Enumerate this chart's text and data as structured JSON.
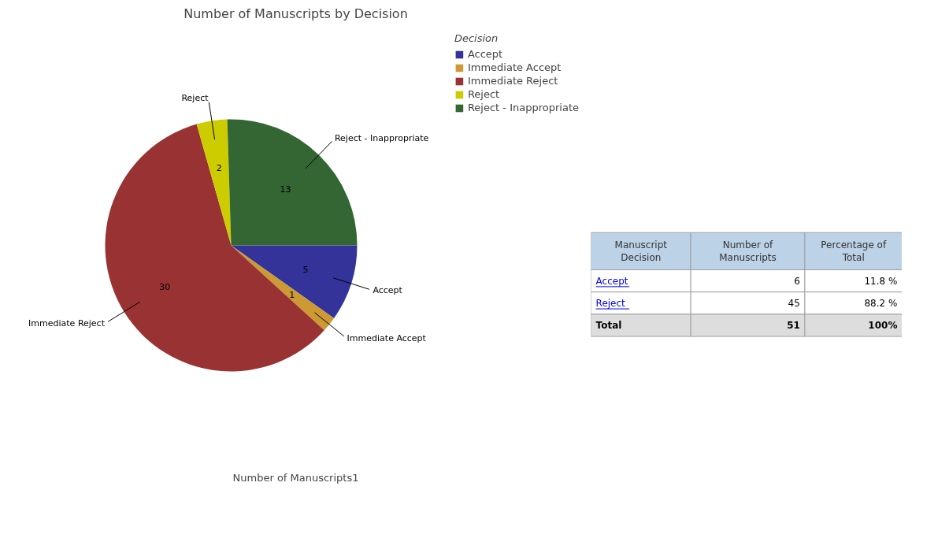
{
  "chart_data": [
    {
      "type": "pie",
      "title": "Number of Manuscripts by Decision",
      "xlabel": "Number of Manuscripts1",
      "legend_title": "Decision",
      "legend": "top right",
      "data_labels": true,
      "categories": [
        "Accept",
        "Immediate Accept",
        "Immediate Reject",
        "Reject",
        "Reject - Inappropriate"
      ],
      "values": [
        5,
        1,
        30,
        2,
        13
      ],
      "colors": [
        "#333399",
        "#cc9933",
        "#993333",
        "#cccc00",
        "#336633"
      ]
    },
    {
      "type": "other",
      "xlabel": "Manuscript Decision",
      "categories": [
        "Accept",
        "Reject",
        "Total"
      ],
      "series": [
        {
          "name": "Number of Manuscripts",
          "colors": [
            "#ffffff",
            "#ffffff",
            "#dddddd"
          ],
          "values": [
            6,
            45,
            51
          ],
          "value_labels": [
            "6",
            "45",
            "51"
          ]
        },
        {
          "name": "Percentage of Total",
          "colors": [
            "#ffffff",
            "#ffffff",
            "#dddddd"
          ],
          "values": [
            11.8,
            88.2,
            100
          ],
          "value_labels": [
            "11.8 %",
            "88.2 %",
            "100%"
          ]
        }
      ]
    }
  ]
}
